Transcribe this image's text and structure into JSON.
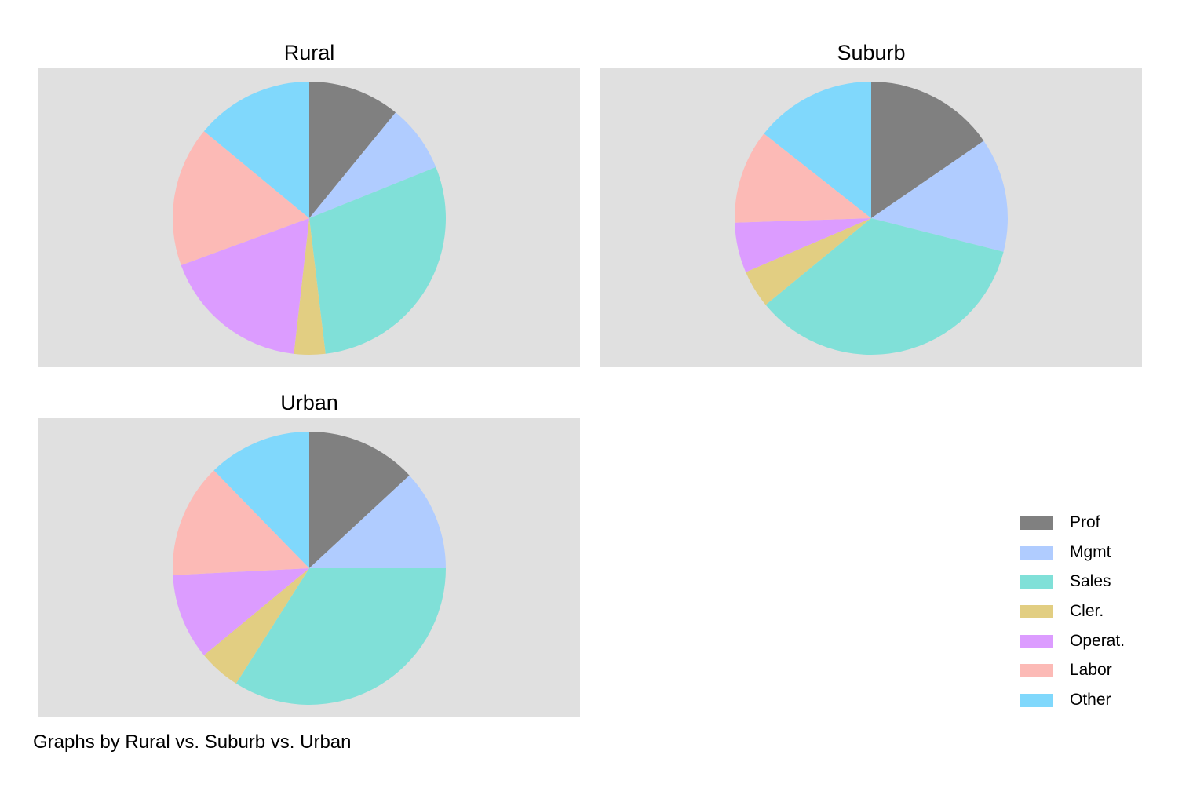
{
  "chart_data": {
    "type": "pie",
    "categories": [
      "Prof",
      "Mgmt",
      "Sales",
      "Cler.",
      "Operat.",
      "Labor",
      "Other"
    ],
    "colors": [
      "#808080",
      "#b0ccff",
      "#80e0d8",
      "#e2ce82",
      "#dc9cff",
      "#fcbab6",
      "#80d8fc"
    ],
    "panels": [
      {
        "title": "Rural",
        "values": [
          10.9,
          8.0,
          29.2,
          3.7,
          17.6,
          16.6,
          14.0
        ]
      },
      {
        "title": "Suburb",
        "values": [
          14.8,
          13.0,
          33.7,
          4.3,
          5.7,
          10.7,
          13.8
        ]
      },
      {
        "title": "Urban",
        "values": [
          13.1,
          11.9,
          34.0,
          5.0,
          10.2,
          13.5,
          12.3
        ]
      }
    ],
    "legend_position": "right",
    "note": "Graphs by Rural vs. Suburb vs. Urban"
  }
}
